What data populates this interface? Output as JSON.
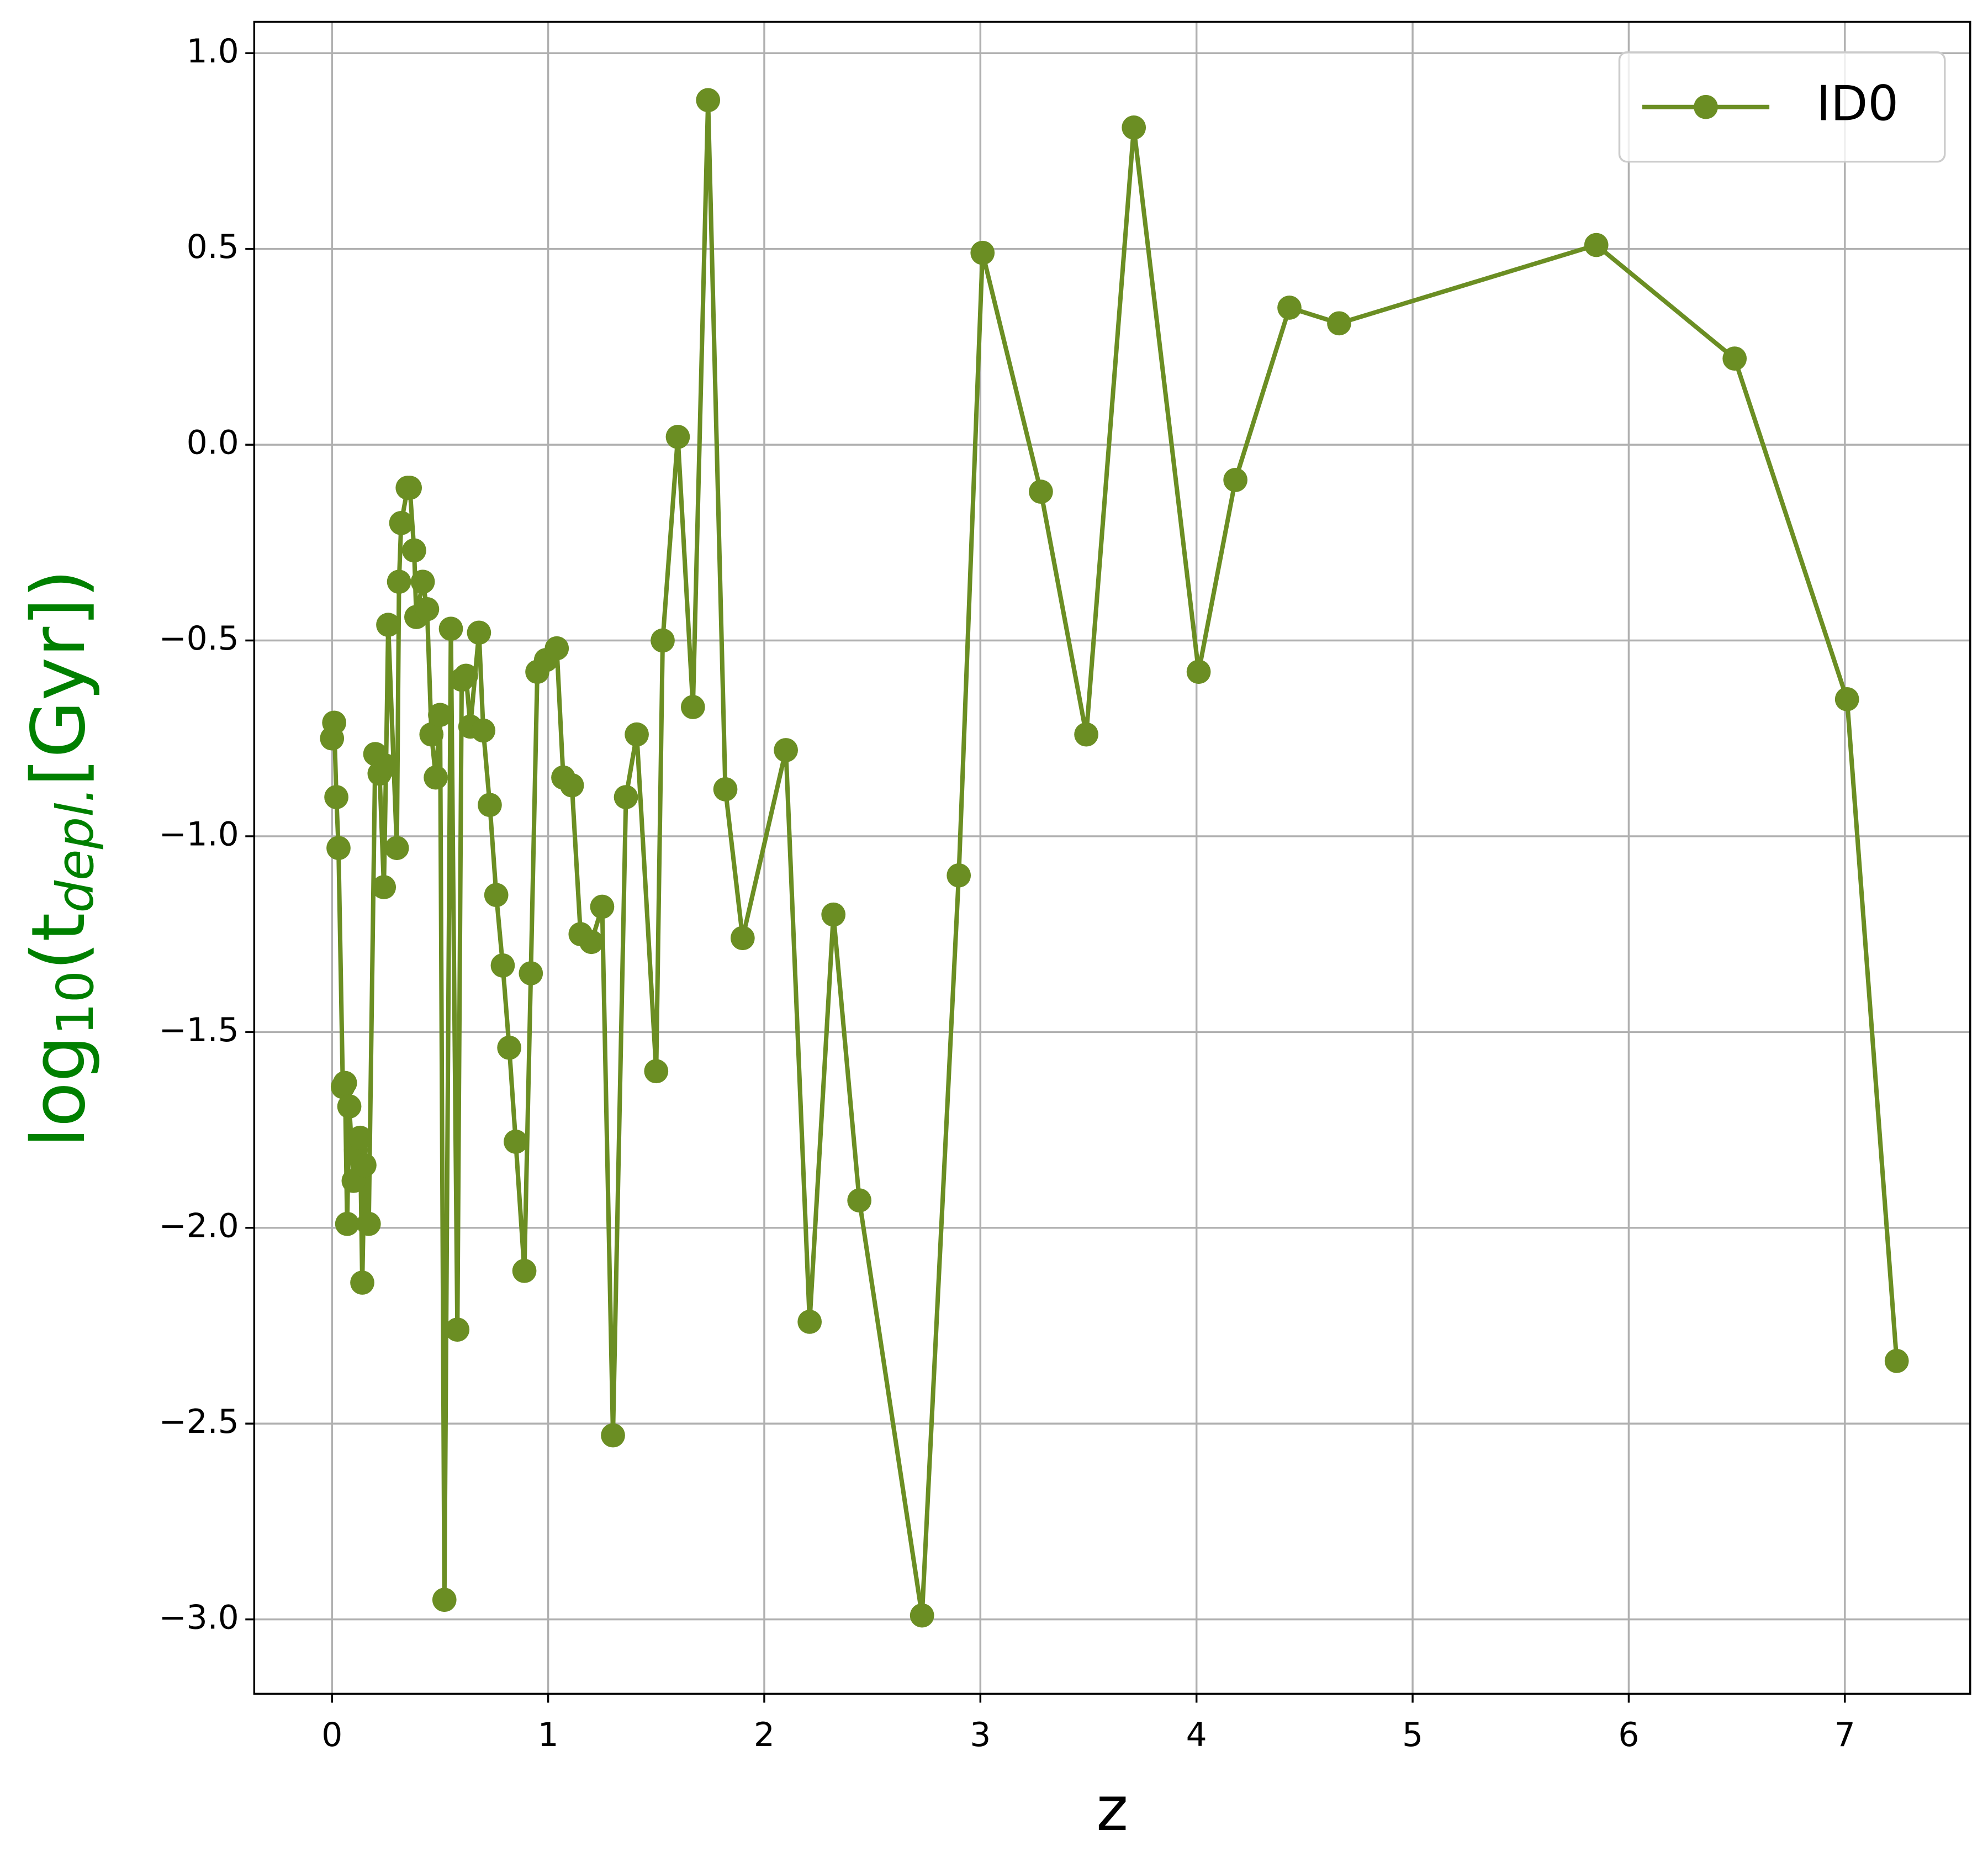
{
  "chart_data": {
    "type": "line",
    "x_label": "z",
    "y_label": [
      "log",
      "10",
      "(t",
      "depl.",
      "[Gyr])"
    ],
    "y_label_color": "#008000",
    "grid": true,
    "legend": "upper right",
    "xlim": [
      -0.36,
      7.58
    ],
    "ylim": [
      -3.19,
      1.08
    ],
    "xticks": [
      0,
      1,
      2,
      3,
      4,
      5,
      6,
      7
    ],
    "yticks": [
      {
        "value": -3.0,
        "label": "−3.0"
      },
      {
        "value": -2.5,
        "label": "−2.5"
      },
      {
        "value": -2.0,
        "label": "−2.0"
      },
      {
        "value": -1.5,
        "label": "−1.5"
      },
      {
        "value": -1.0,
        "label": "−1.0"
      },
      {
        "value": -0.5,
        "label": "−0.5"
      },
      {
        "value": 0.0,
        "label": "0.0"
      },
      {
        "value": 0.5,
        "label": "0.5"
      },
      {
        "value": 1.0,
        "label": "1.0"
      }
    ],
    "x": [
      0.0,
      0.01,
      0.02,
      0.03,
      0.05,
      0.06,
      0.07,
      0.08,
      0.1,
      0.11,
      0.13,
      0.14,
      0.15,
      0.17,
      0.2,
      0.22,
      0.24,
      0.25,
      0.26,
      0.3,
      0.31,
      0.32,
      0.35,
      0.36,
      0.38,
      0.39,
      0.42,
      0.44,
      0.46,
      0.48,
      0.5,
      0.52,
      0.55,
      0.58,
      0.6,
      0.62,
      0.64,
      0.68,
      0.7,
      0.73,
      0.76,
      0.79,
      0.82,
      0.85,
      0.89,
      0.92,
      0.95,
      0.99,
      1.04,
      1.07,
      1.11,
      1.15,
      1.2,
      1.25,
      1.3,
      1.36,
      1.41,
      1.5,
      1.53,
      1.6,
      1.67,
      1.74,
      1.82,
      1.9,
      2.1,
      2.21,
      2.32,
      2.44,
      2.73,
      2.9,
      3.01,
      3.28,
      3.49,
      3.71,
      4.01,
      4.18,
      4.43,
      4.66,
      5.85,
      6.49,
      7.01,
      7.24
    ],
    "series": [
      {
        "name": "ID0",
        "color": "#6b8e23",
        "values": [
          -0.75,
          -0.71,
          -0.9,
          -1.03,
          -1.64,
          -1.63,
          -1.99,
          -1.69,
          -1.88,
          -1.8,
          -1.77,
          -2.14,
          -1.84,
          -1.99,
          -0.79,
          -0.84,
          -1.13,
          -0.82,
          -0.46,
          -1.03,
          -0.35,
          -0.2,
          -0.11,
          -0.11,
          -0.27,
          -0.44,
          -0.35,
          -0.42,
          -0.74,
          -0.85,
          -0.69,
          -2.95,
          -0.47,
          -2.26,
          -0.6,
          -0.59,
          -0.72,
          -0.48,
          -0.73,
          -0.92,
          -1.15,
          -1.33,
          -1.54,
          -1.78,
          -2.11,
          -1.35,
          -0.58,
          -0.55,
          -0.52,
          -0.85,
          -0.87,
          -1.25,
          -1.27,
          -1.18,
          -2.53,
          -0.9,
          -0.74,
          -1.6,
          -0.5,
          0.02,
          -0.67,
          0.88,
          -0.88,
          -1.26,
          -0.78,
          -2.24,
          -1.2,
          -1.93,
          -2.99,
          -1.1,
          0.49,
          -0.12,
          -0.74,
          0.81,
          -0.58,
          -0.09,
          0.35,
          0.31,
          0.51,
          0.22,
          -0.65,
          -2.34
        ]
      }
    ]
  }
}
